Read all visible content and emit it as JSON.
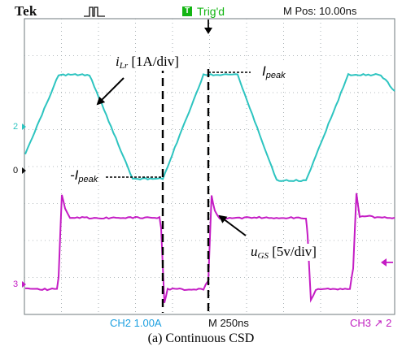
{
  "header": {
    "brand": "Tek",
    "trigger_badge": "T",
    "trigger_status": "Trig'd",
    "horizontal_position": "M Pos: 10.00ns"
  },
  "channel_markers": {
    "ch2": "2",
    "zero": "0",
    "ch3": "3"
  },
  "bottom_readout": {
    "ch2_scale": "CH2  1.00A",
    "timebase": "M 250ns",
    "ch3_trigger": "CH3 ↗ 2"
  },
  "annotations": {
    "current": {
      "symbol": "i",
      "subscript": "Lr",
      "scale": "[1A/div]"
    },
    "ipeak_pos": {
      "symbol": "I",
      "subscript": "peak"
    },
    "ipeak_neg": {
      "prefix": "-",
      "symbol": "I",
      "subscript": "peak"
    },
    "gate": {
      "symbol": "u",
      "subscript": "GS",
      "scale": "[5v/div]"
    }
  },
  "caption": "(a) Continuous CSD",
  "colors": {
    "current_trace": "#2dc4c0",
    "gate_trace": "#c41cc4",
    "grid": "#9aa4a8",
    "ch2_label": "#1b9fe0",
    "trigger_green": "#13b513"
  },
  "icons": {
    "trigger_waveform": "pulse-waveform-icon",
    "trigger_position": "down-arrow-icon",
    "ch3_level": "left-arrow-icon"
  }
}
